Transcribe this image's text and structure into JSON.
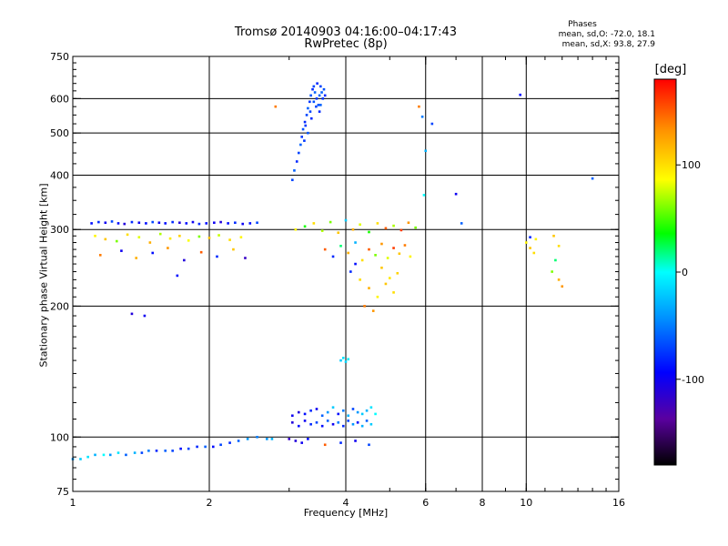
{
  "chart_data": {
    "type": "scatter",
    "title": "Tromsø 20140903 04:16:00–04:17:43",
    "subtitle": "RwPretec (8p)",
    "xlabel": "Frequency [MHz]",
    "ylabel": "Stationary phase Virtual Height [km]",
    "x_scale": "log",
    "y_scale": "log",
    "xlim": [
      1,
      16
    ],
    "ylim": [
      75,
      750
    ],
    "x_major_ticks": [
      1,
      2,
      4,
      6,
      8,
      10,
      16
    ],
    "y_major_ticks": [
      75,
      100,
      200,
      300,
      400,
      500,
      600,
      750
    ],
    "x_gridlines": [
      2,
      4,
      6,
      8,
      10
    ],
    "y_gridlines": [
      100,
      200,
      300,
      400,
      500,
      600
    ],
    "grid": true,
    "colorbar": {
      "label": "[deg]",
      "ticks": [
        100,
        0,
        -100
      ],
      "range": [
        -180,
        180
      ]
    },
    "stats": {
      "header": "Phases",
      "o": "mean, sd,O: -72.0, 18.1",
      "x": "mean, sd,X:  93.8, 27.9"
    },
    "series": [
      {
        "x": [
          1.0,
          1.04,
          1.08,
          1.12,
          1.17,
          1.21,
          1.26,
          1.31,
          1.37,
          1.42,
          1.47,
          1.53,
          1.6,
          1.66,
          1.73,
          1.8,
          1.88,
          1.96,
          2.04,
          2.12,
          2.22,
          2.32,
          2.43,
          2.55,
          2.68,
          2.75
        ],
        "y": [
          89,
          89,
          90,
          91,
          91,
          91,
          92,
          91,
          92,
          92,
          93,
          93,
          93,
          93,
          94,
          94,
          95,
          95,
          95,
          96,
          97,
          98,
          99,
          100,
          99,
          99
        ],
        "phase": [
          -40,
          -20,
          -10,
          -30,
          0,
          -40,
          -10,
          -60,
          -30,
          -70,
          -50,
          -80,
          -60,
          -70,
          -90,
          -70,
          -80,
          -60,
          -90,
          -70,
          -80,
          -60,
          -40,
          -50,
          -40,
          -30
        ]
      },
      {
        "x": [
          1.1,
          1.14,
          1.18,
          1.22,
          1.26,
          1.3,
          1.35,
          1.4,
          1.45,
          1.5,
          1.55,
          1.6,
          1.66,
          1.72,
          1.78,
          1.84,
          1.9,
          1.97,
          2.05,
          2.12,
          2.2,
          2.28,
          2.37,
          2.46,
          2.55
        ],
        "y": [
          310,
          312,
          311,
          313,
          310,
          309,
          312,
          311,
          310,
          312,
          311,
          310,
          312,
          311,
          310,
          312,
          309,
          310,
          311,
          312,
          310,
          311,
          309,
          310,
          311
        ],
        "phase": [
          -90,
          -80,
          -100,
          -70,
          -90,
          -110,
          -80,
          -100,
          -90,
          -70,
          -100,
          -90,
          -80,
          -110,
          -90,
          -100,
          -80,
          -90,
          -100,
          -110,
          -90,
          -80,
          -100,
          -90,
          -70
        ]
      },
      {
        "x": [
          1.12,
          1.18,
          1.25,
          1.32,
          1.4,
          1.48,
          1.56,
          1.64,
          1.72,
          1.8,
          1.9,
          2.0,
          2.1,
          2.22,
          2.35
        ],
        "y": [
          290,
          285,
          282,
          292,
          288,
          280,
          293,
          286,
          290,
          283,
          289,
          287,
          291,
          284,
          288
        ],
        "phase": [
          90,
          110,
          60,
          100,
          80,
          120,
          70,
          95,
          105,
          85,
          60,
          110,
          75,
          100,
          90
        ]
      },
      {
        "x": [
          1.15,
          1.28,
          1.38,
          1.5,
          1.62,
          1.76,
          1.92,
          2.08,
          2.26,
          2.4
        ],
        "y": [
          262,
          268,
          258,
          265,
          272,
          255,
          266,
          260,
          270,
          258
        ],
        "phase": [
          140,
          -100,
          120,
          -90,
          130,
          -110,
          150,
          -80,
          110,
          -120
        ]
      },
      {
        "x": [
          1.35,
          1.44,
          1.7
        ],
        "y": [
          192,
          190,
          235
        ],
        "phase": [
          -110,
          -100,
          -90
        ]
      },
      {
        "x": [
          3.05,
          3.08,
          3.12,
          3.15,
          3.18,
          3.2,
          3.22,
          3.25,
          3.28,
          3.3,
          3.33,
          3.35,
          3.38,
          3.4,
          3.42,
          3.45,
          3.48,
          3.5,
          3.52,
          3.54,
          3.56,
          3.3,
          3.36,
          3.44,
          3.5,
          3.26,
          3.4,
          3.46,
          3.34,
          3.52,
          3.24,
          3.58,
          3.6
        ],
        "y": [
          390,
          410,
          430,
          450,
          470,
          490,
          510,
          530,
          550,
          570,
          590,
          610,
          630,
          640,
          620,
          600,
          580,
          560,
          640,
          620,
          600,
          500,
          540,
          575,
          610,
          520,
          590,
          650,
          560,
          580,
          480,
          630,
          610
        ],
        "phase": [
          -70,
          -60,
          -80,
          -70,
          -60,
          -75,
          -65,
          -80,
          -70,
          -60,
          -75,
          -65,
          -80,
          -70,
          -60,
          -75,
          -65,
          -80,
          -70,
          -60,
          -75,
          -65,
          -80,
          -70,
          -60,
          -75,
          -65,
          -80,
          -70,
          -60,
          -75,
          -65,
          -80
        ]
      },
      {
        "x": [
          3.1,
          3.25,
          3.4,
          3.55,
          3.7,
          3.85,
          4.0,
          4.15,
          4.3,
          4.5,
          4.7,
          4.9,
          5.1,
          5.3,
          5.5,
          5.7
        ],
        "y": [
          300,
          305,
          310,
          298,
          312,
          295,
          315,
          300,
          308,
          296,
          310,
          302,
          306,
          299,
          311,
          303
        ],
        "phase": [
          90,
          40,
          100,
          70,
          60,
          110,
          -20,
          120,
          80,
          40,
          100,
          150,
          70,
          160,
          130,
          60
        ]
      },
      {
        "x": [
          3.6,
          3.75,
          3.9,
          4.05,
          4.2,
          4.35,
          4.5,
          4.65,
          4.8,
          4.95,
          5.1,
          5.25,
          5.4,
          5.55
        ],
        "y": [
          270,
          260,
          275,
          265,
          280,
          255,
          270,
          262,
          278,
          258,
          272,
          264,
          276,
          260
        ],
        "phase": [
          150,
          -80,
          20,
          120,
          -30,
          100,
          150,
          60,
          130,
          80,
          160,
          110,
          140,
          90
        ]
      },
      {
        "x": [
          4.1,
          4.3,
          4.5,
          4.7,
          4.9,
          5.1,
          4.4,
          4.8,
          5.0,
          4.6,
          4.2,
          5.2
        ],
        "y": [
          240,
          230,
          220,
          210,
          225,
          215,
          200,
          245,
          232,
          195,
          250,
          238
        ],
        "phase": [
          -80,
          100,
          120,
          90,
          110,
          100,
          140,
          110,
          95,
          130,
          -90,
          105
        ]
      },
      {
        "x": [
          3.05,
          3.15,
          3.25,
          3.35,
          3.45,
          3.55,
          3.65,
          3.75,
          3.85,
          3.95,
          4.05,
          4.15,
          4.25,
          4.35,
          4.45,
          4.55,
          4.65
        ],
        "y": [
          112,
          114,
          113,
          115,
          116,
          112,
          114,
          117,
          113,
          115,
          112,
          116,
          114,
          113,
          115,
          117,
          113
        ],
        "phase": [
          -100,
          -110,
          -90,
          -80,
          -100,
          -60,
          -40,
          -20,
          -90,
          -50,
          -30,
          -70,
          -40,
          -20,
          -30,
          -10,
          0
        ]
      },
      {
        "x": [
          3.05,
          3.15,
          3.25,
          3.35,
          3.45,
          3.55,
          3.65,
          3.75,
          3.85,
          3.95,
          4.05,
          4.15,
          4.25,
          4.35,
          4.45,
          4.55
        ],
        "y": [
          108,
          106,
          109,
          107,
          108,
          106,
          109,
          107,
          108,
          106,
          109,
          107,
          108,
          106,
          109,
          107
        ],
        "phase": [
          -110,
          -90,
          -100,
          -80,
          -70,
          -90,
          -60,
          -100,
          -50,
          -80,
          -70,
          -40,
          -90,
          -30,
          -60,
          -20
        ]
      },
      {
        "x": [
          3.0,
          3.1,
          3.2,
          3.3,
          3.6,
          3.9,
          4.2,
          4.5
        ],
        "y": [
          99,
          98,
          97,
          99,
          96,
          97,
          98,
          96
        ],
        "phase": [
          -120,
          -110,
          -100,
          -90,
          150,
          -80,
          -100,
          -70
        ]
      },
      {
        "x": [
          3.9,
          3.95,
          4.0,
          4.05
        ],
        "y": [
          150,
          152,
          149,
          151
        ],
        "phase": [
          -20,
          -10,
          -15,
          -5
        ]
      },
      {
        "x": [
          5.8,
          5.9,
          6.0,
          6.2,
          7.0,
          7.2,
          9.7,
          10.2,
          10.5,
          11.5,
          11.8,
          14.0,
          2.8,
          5.95
        ],
        "y": [
          575,
          545,
          455,
          525,
          362,
          310,
          612,
          288,
          285,
          290,
          275,
          393,
          575,
          360
        ],
        "phase": [
          140,
          -50,
          -30,
          -70,
          -100,
          -60,
          -90,
          -80,
          90,
          110,
          100,
          -60,
          140,
          0
        ]
      },
      {
        "x": [
          10.0,
          10.2,
          10.4,
          11.4,
          11.6,
          11.8,
          12.0
        ],
        "y": [
          280,
          272,
          265,
          240,
          255,
          230,
          222
        ],
        "phase": [
          90,
          110,
          100,
          60,
          20,
          120,
          130
        ]
      }
    ]
  }
}
